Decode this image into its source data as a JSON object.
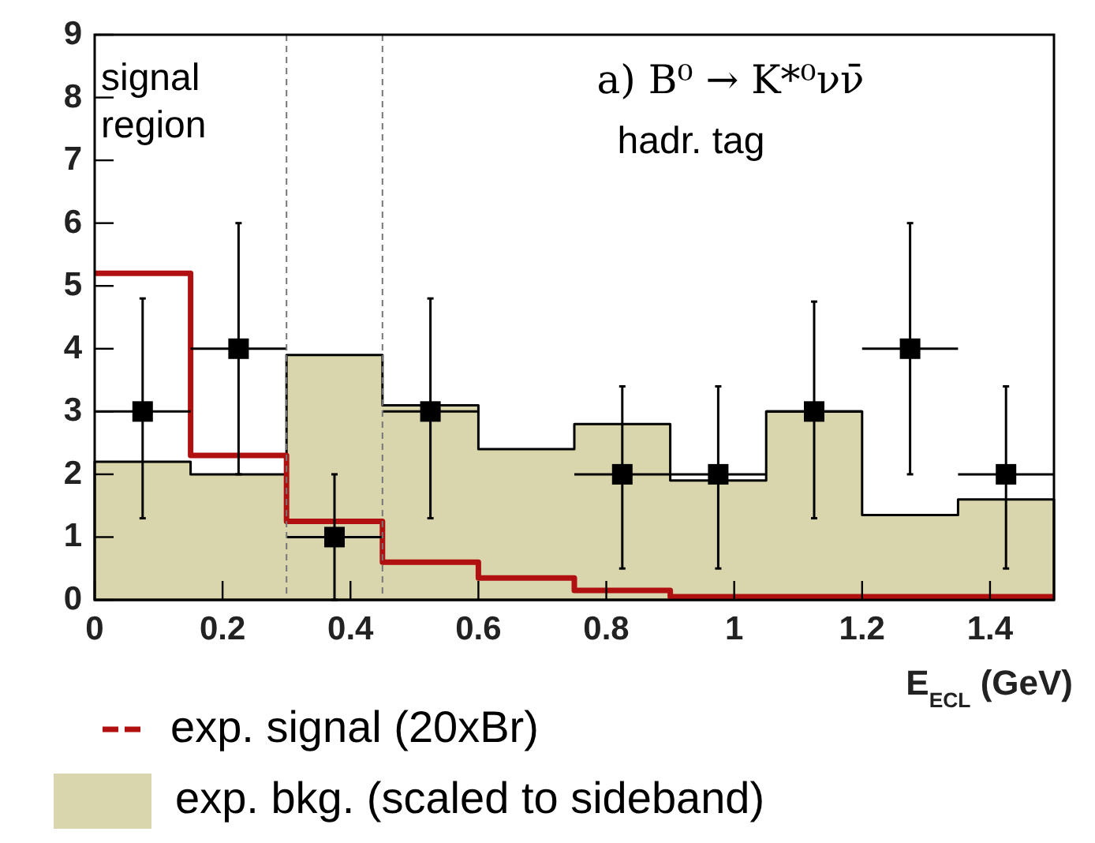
{
  "chart_data": {
    "type": "histogram",
    "bins": [
      0,
      0.15,
      0.3,
      0.45,
      0.6,
      0.75,
      0.9,
      1.05,
      1.2,
      1.35,
      1.5
    ],
    "series": [
      {
        "type": "step",
        "name": "exp. signal (20xBr)",
        "color": "#b01010",
        "x": [
          0,
          0.15,
          0.3,
          0.45,
          0.6,
          0.75,
          0.9,
          1.05,
          1.2,
          1.35,
          1.5
        ],
        "values": [
          5.2,
          2.3,
          1.25,
          0.6,
          0.35,
          0.15,
          0.05,
          0.05,
          0.05,
          0.05,
          0.05
        ]
      },
      {
        "name": "exp. bkg. (scaled to sideband)",
        "color": "#d9d6ad",
        "values": [
          2.2,
          2.0,
          3.9,
          3.1,
          2.4,
          2.8,
          1.9,
          3.0,
          1.35,
          1.6
        ]
      },
      {
        "type": "scatter",
        "color": "#000000",
        "marker": "square",
        "x": [
          0.075,
          0.225,
          0.375,
          0.525,
          0.675,
          0.825,
          0.975,
          1.125,
          1.275,
          1.425
        ],
        "values": [
          3,
          4,
          1,
          3,
          null,
          2,
          2,
          3,
          4,
          2
        ],
        "errors": [
          [
            1.3,
            4.8
          ],
          [
            2,
            6
          ],
          [
            0,
            2
          ],
          [
            1.3,
            4.8
          ],
          null,
          [
            0.5,
            3.4
          ],
          [
            0.5,
            3.4
          ],
          [
            1.3,
            4.75
          ],
          [
            2,
            6
          ],
          [
            0.5,
            3.4
          ]
        ],
        "xerrors": [
          0.075,
          0.075,
          0.075,
          0.075,
          null,
          0.075,
          0.075,
          0.075,
          0.075,
          0.075
        ]
      }
    ],
    "xlim": [
      0,
      1.5
    ],
    "xticks": [
      0,
      0.2,
      0.4,
      0.6,
      0.8,
      1,
      1.2,
      1.4
    ],
    "ylim": [
      0,
      9
    ],
    "yticks": [
      0,
      1,
      2,
      3,
      4,
      5,
      6,
      7,
      8,
      9
    ],
    "xlabel": "E$_{ECL}$ (GeV)",
    "ref_lines": [
      {
        "axis": "x",
        "value": 0.3,
        "line_style": "dashed",
        "color": "#777777"
      },
      {
        "axis": "x",
        "value": 0.45,
        "line_style": "dashed",
        "color": "#777777"
      }
    ],
    "annotations": [
      "signal region",
      "a) B⁰ → K*⁰νν̄",
      "hadr. tag"
    ],
    "grid": false,
    "legend": "bottom",
    "line_style": "solid"
  }
}
